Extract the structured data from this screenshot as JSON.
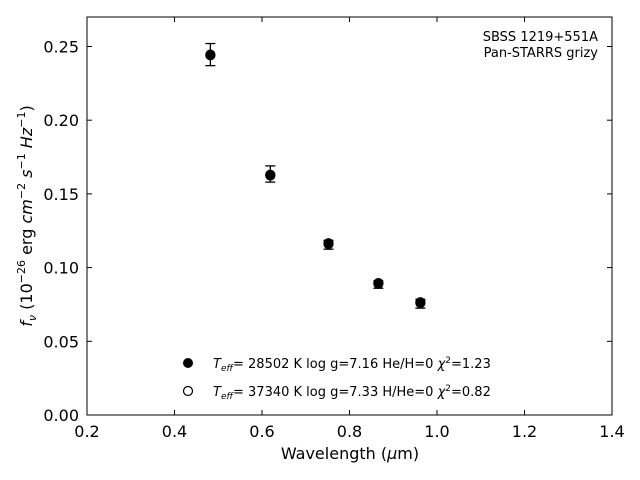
{
  "chart_data": {
    "type": "scatter",
    "annotation": [
      "SBSS 1219+551A",
      "Pan-STARRS grizy"
    ],
    "xlabel": {
      "main": "Wavelength (",
      "mu": "μ",
      "rest": "m)"
    },
    "ylabel": {
      "f": "f",
      "nu": "ν",
      "open": " (10",
      "e1": "−26",
      "erg": " erg ",
      "cm": "cm",
      "e2": "−2",
      "s": " s",
      "e3": "−1",
      "hz": " Hz",
      "e4": "−1",
      "close": ")"
    },
    "xlim": [
      0.2,
      1.4
    ],
    "ylim": [
      0.0,
      0.27
    ],
    "x_ticks": [
      0.2,
      0.4,
      0.6,
      0.8,
      1.0,
      1.2,
      1.4
    ],
    "x_tick_labels": [
      "0.2",
      "0.4",
      "0.6",
      "0.8",
      "1.0",
      "1.2",
      "1.4"
    ],
    "y_ticks": [
      0.0,
      0.05,
      0.1,
      0.15,
      0.2,
      0.25
    ],
    "y_tick_labels": [
      "0.00",
      "0.05",
      "0.10",
      "0.15",
      "0.20",
      "0.25"
    ],
    "observed": {
      "x": [
        0.482,
        0.619,
        0.752,
        0.866,
        0.962
      ],
      "y": [
        0.2445,
        0.1635,
        0.1155,
        0.0885,
        0.0755
      ],
      "yerr": [
        0.0075,
        0.0055,
        0.003,
        0.0025,
        0.003
      ]
    },
    "series": [
      {
        "marker": "filled",
        "x": [
          0.482,
          0.619,
          0.752,
          0.866,
          0.962
        ],
        "y": [
          0.244,
          0.163,
          0.116,
          0.0895,
          0.076
        ],
        "legend": {
          "T": "T",
          "eff": "eff",
          "rest1": "= 28502 K  log g=7.16  He/H=0  ",
          "chi": "χ",
          "two": "2",
          "rest2": "=1.23"
        }
      },
      {
        "marker": "open",
        "x": [
          0.482,
          0.619,
          0.752,
          0.866,
          0.962
        ],
        "y": [
          0.2445,
          0.1625,
          0.1165,
          0.089,
          0.0765
        ],
        "legend": {
          "T": "T",
          "eff": "eff",
          "rest1": "= 37340 K  log g=7.33  H/He=0  ",
          "chi": "χ",
          "two": "2",
          "rest2": "=0.82"
        }
      }
    ],
    "legend_position": "lower-center"
  }
}
